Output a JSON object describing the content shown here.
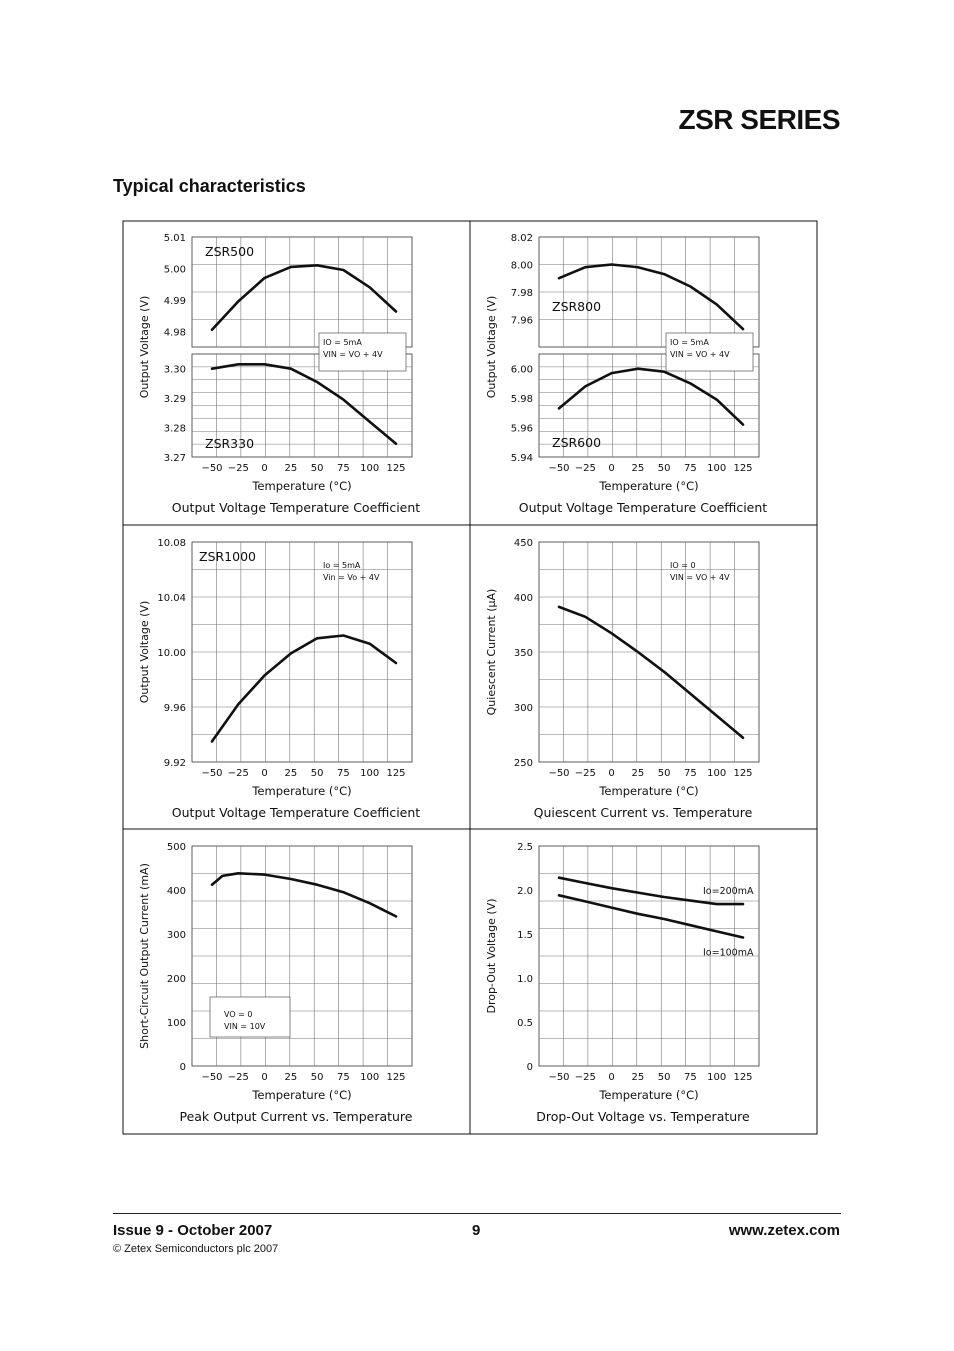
{
  "header": {
    "series_title": "ZSR SERIES"
  },
  "section": {
    "title": "Typical characteristics"
  },
  "footer": {
    "issue": "Issue 9 - October 2007",
    "page": "9",
    "url": "www.zetex.com",
    "copyright": "© Zetex Semiconductors plc 2007"
  },
  "chart_data": [
    {
      "type": "line",
      "caption": "Output Voltage Temperature Coefficient",
      "xlabel": "Temperature (°C)",
      "ylabel": "Output Voltage (V)",
      "xlim": [
        -50,
        125
      ],
      "x_ticks": [
        "−50",
        "−25",
        "0",
        "25",
        "50",
        "75",
        "100",
        "125"
      ],
      "conditions": [
        "IO = 5mA",
        "VIN = VO + 4V"
      ],
      "panels": [
        {
          "ylim": [
            4.975,
            5.01
          ],
          "y_ticks": [
            "5.01",
            "5.00",
            "4.99",
            "4.98"
          ],
          "series": [
            {
              "name": "ZSR500",
              "x": [
                -50,
                -25,
                0,
                25,
                50,
                75,
                100,
                125
              ],
              "y": [
                4.9805,
                4.9895,
                4.997,
                5.0005,
                5.001,
                4.9995,
                4.994,
                4.9863
              ]
            }
          ]
        },
        {
          "ylim": [
            3.27,
            3.305
          ],
          "y_ticks": [
            "3.30",
            "3.29",
            "3.28",
            "3.27"
          ],
          "series": [
            {
              "name": "ZSR330",
              "x": [
                -50,
                -25,
                0,
                25,
                50,
                75,
                100,
                125
              ],
              "y": [
                3.3,
                3.3015,
                3.3015,
                3.3,
                3.2955,
                3.2895,
                3.282,
                3.2745
              ]
            }
          ]
        }
      ]
    },
    {
      "type": "line",
      "caption": "Output Voltage Temperature Coefficient",
      "xlabel": "Temperature (°C)",
      "ylabel": "Output Voltage (V)",
      "xlim": [
        -50,
        125
      ],
      "x_ticks": [
        "−50",
        "−25",
        "0",
        "25",
        "50",
        "75",
        "100",
        "125"
      ],
      "conditions": [
        "IO = 5mA",
        "VIN = VO + 4V"
      ],
      "panels": [
        {
          "ylim": [
            7.94,
            8.02
          ],
          "y_ticks": [
            "8.02",
            "8.00",
            "7.98",
            "7.96"
          ],
          "series": [
            {
              "name": "ZSR800",
              "x": [
                -50,
                -25,
                0,
                25,
                50,
                75,
                100,
                125
              ],
              "y": [
                7.99,
                7.998,
                8.0,
                7.998,
                7.993,
                7.984,
                7.971,
                7.953
              ]
            }
          ]
        },
        {
          "ylim": [
            5.94,
            6.01
          ],
          "y_ticks": [
            "6.00",
            "5.98",
            "5.96",
            "5.94"
          ],
          "series": [
            {
              "name": "ZSR600",
              "x": [
                -50,
                -25,
                0,
                25,
                50,
                75,
                100,
                125
              ],
              "y": [
                5.973,
                5.988,
                5.997,
                6.0,
                5.998,
                5.99,
                5.979,
                5.962
              ]
            }
          ]
        }
      ]
    },
    {
      "type": "line",
      "caption": "Output Voltage Temperature Coefficient",
      "xlabel": "Temperature (°C)",
      "ylabel": "Output Voltage (V)",
      "xlim": [
        -50,
        125
      ],
      "ylim": [
        9.92,
        10.08
      ],
      "x_ticks": [
        "−50",
        "−25",
        "0",
        "25",
        "50",
        "75",
        "100",
        "125"
      ],
      "y_ticks": [
        "10.08",
        "10.04",
        "10.00",
        "9.96",
        "9.92"
      ],
      "conditions": [
        "Io = 5mA",
        "Vin = Vo + 4V"
      ],
      "series": [
        {
          "name": "ZSR1000",
          "x": [
            -50,
            -25,
            0,
            25,
            50,
            75,
            100,
            125
          ],
          "y": [
            9.935,
            9.962,
            9.983,
            9.999,
            10.01,
            10.012,
            10.006,
            9.992
          ]
        }
      ]
    },
    {
      "type": "line",
      "caption": "Quiescent Current vs. Temperature",
      "xlabel": "Temperature (°C)",
      "ylabel": "Quiescent Current (µA)",
      "xlim": [
        -50,
        125
      ],
      "ylim": [
        250,
        450
      ],
      "x_ticks": [
        "−50",
        "−25",
        "0",
        "25",
        "50",
        "75",
        "100",
        "125"
      ],
      "y_ticks": [
        "450",
        "400",
        "350",
        "300",
        "250"
      ],
      "conditions": [
        "IO = 0",
        "VIN = VO + 4V"
      ],
      "series": [
        {
          "x": [
            -50,
            -25,
            0,
            25,
            50,
            75,
            100,
            125
          ],
          "y": [
            391,
            382,
            367,
            350,
            332,
            312,
            292,
            272
          ]
        }
      ]
    },
    {
      "type": "line",
      "caption": "Peak Output Current vs. Temperature",
      "xlabel": "Temperature (°C)",
      "ylabel": "Short-Circuit Output Current (mA)",
      "xlim": [
        -50,
        125
      ],
      "ylim": [
        0,
        500
      ],
      "x_ticks": [
        "−50",
        "−25",
        "0",
        "25",
        "50",
        "75",
        "100",
        "125"
      ],
      "y_ticks": [
        "500",
        "400",
        "300",
        "200",
        "100",
        "0"
      ],
      "conditions": [
        "VO = 0",
        "VIN = 10V"
      ],
      "series": [
        {
          "x": [
            -50,
            -40,
            -25,
            0,
            25,
            50,
            75,
            100,
            125
          ],
          "y": [
            412,
            432,
            438,
            435,
            425,
            412,
            395,
            370,
            340
          ]
        }
      ]
    },
    {
      "type": "line",
      "caption": "Drop-Out Voltage vs. Temperature",
      "xlabel": "Temperature (°C)",
      "ylabel": "Drop-Out Voltage (V)",
      "xlim": [
        -50,
        125
      ],
      "ylim": [
        0,
        2.5
      ],
      "x_ticks": [
        "−50",
        "−25",
        "0",
        "25",
        "50",
        "75",
        "100",
        "125"
      ],
      "y_ticks": [
        "2.5",
        "2.0",
        "1.5",
        "1.0",
        "0.5",
        "0"
      ],
      "series": [
        {
          "name": "Io=200mA",
          "x": [
            -50,
            -25,
            0,
            25,
            50,
            75,
            100,
            125
          ],
          "y": [
            2.14,
            2.08,
            2.02,
            1.97,
            1.92,
            1.88,
            1.84,
            1.84
          ]
        },
        {
          "name": "Io=100mA",
          "x": [
            -50,
            -25,
            0,
            25,
            50,
            75,
            100,
            125
          ],
          "y": [
            1.94,
            1.87,
            1.8,
            1.73,
            1.67,
            1.6,
            1.53,
            1.46
          ]
        }
      ]
    }
  ]
}
